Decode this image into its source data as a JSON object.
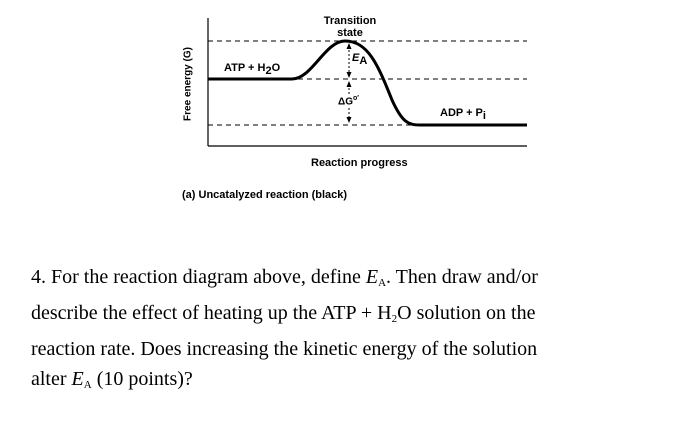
{
  "diagram": {
    "y_axis_label": "Free energy (G)",
    "x_axis_label": "Reaction progress",
    "transition_state": [
      "Transition",
      "state"
    ],
    "reactant": {
      "text": "ATP + H",
      "sub": "2",
      "tail": "O"
    },
    "product": {
      "text": "ADP + P",
      "sub": "i"
    },
    "activation": {
      "symbol": "E",
      "sub": "A"
    },
    "delta_g": {
      "symbol": "ΔG",
      "sup": "o′"
    },
    "caption": {
      "prefix": "(a)",
      "text": "Uncatalyzed reaction (black)"
    }
  },
  "question": {
    "line1_pre": "4. For the reaction diagram above, define ",
    "line1_symbol": "E",
    "line1_sub": "A",
    "line1_post": ". Then draw and/or",
    "line2_pre": "describe the effect of heating up the ATP + H",
    "line2_sub": "2",
    "line2_post": "O solution on the",
    "line3": "reaction rate. Does increasing the kinetic energy of the solution",
    "line4_pre": "alter ",
    "line4_symbol": "E",
    "line4_sub": "A",
    "line4_post": " (10 points)?"
  }
}
